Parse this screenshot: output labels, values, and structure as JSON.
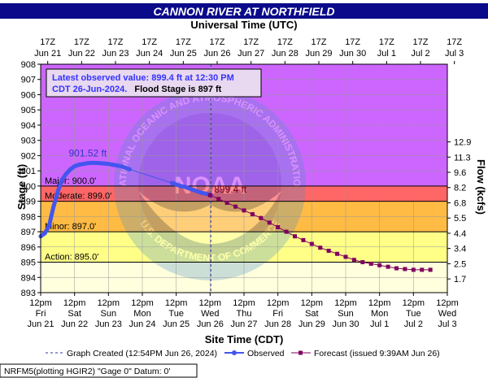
{
  "chart_data": {
    "type": "line",
    "title": "CANNON RIVER AT NORTHFIELD",
    "top_axis_label": "Universal Time (UTC)",
    "xlabel": "Site Time (CDT)",
    "ylabel": "Stage (ft)",
    "y2label": "Flow (kcfs)",
    "ylim": [
      893,
      908
    ],
    "xlim": [
      "2024-06-21T12:00",
      "2024-07-03T12:00"
    ],
    "grid": true,
    "y_ticks": [
      "893",
      "894",
      "895",
      "896",
      "897",
      "898",
      "899",
      "900",
      "901",
      "902",
      "903",
      "904",
      "905",
      "906",
      "907",
      "908"
    ],
    "y2_ticks": [
      {
        "stage": 893.9,
        "label": "1.7"
      },
      {
        "stage": 894.9,
        "label": "2.5"
      },
      {
        "stage": 895.9,
        "label": "3.4"
      },
      {
        "stage": 896.9,
        "label": "4.4"
      },
      {
        "stage": 897.9,
        "label": "5.5"
      },
      {
        "stage": 898.9,
        "label": "6.8"
      },
      {
        "stage": 899.9,
        "label": "8.2"
      },
      {
        "stage": 900.9,
        "label": "9.6"
      },
      {
        "stage": 901.9,
        "label": "11.3"
      },
      {
        "stage": 902.9,
        "label": "12.9"
      }
    ],
    "x_ticks_bottom": [
      {
        "time": "12pm",
        "day": "Fri",
        "date": "Jun 21"
      },
      {
        "time": "12pm",
        "day": "Sat",
        "date": "Jun 22"
      },
      {
        "time": "12pm",
        "day": "Sun",
        "date": "Jun 23"
      },
      {
        "time": "12pm",
        "day": "Mon",
        "date": "Jun 24"
      },
      {
        "time": "12pm",
        "day": "Tue",
        "date": "Jun 25"
      },
      {
        "time": "12pm",
        "day": "Wed",
        "date": "Jun 26"
      },
      {
        "time": "12pm",
        "day": "Thu",
        "date": "Jun 27"
      },
      {
        "time": "12pm",
        "day": "Fri",
        "date": "Jun 28"
      },
      {
        "time": "12pm",
        "day": "Sat",
        "date": "Jun 29"
      },
      {
        "time": "12pm",
        "day": "Sun",
        "date": "Jun 30"
      },
      {
        "time": "12pm",
        "day": "Mon",
        "date": "Jul 1"
      },
      {
        "time": "12pm",
        "day": "Tue",
        "date": "Jul 2"
      },
      {
        "time": "12pm",
        "day": "Wed",
        "date": "Jul 3"
      }
    ],
    "x_ticks_top": [
      {
        "time": "17Z",
        "date": "Jun 21"
      },
      {
        "time": "17Z",
        "date": "Jun 22"
      },
      {
        "time": "17Z",
        "date": "Jun 23"
      },
      {
        "time": "17Z",
        "date": "Jun 24"
      },
      {
        "time": "17Z",
        "date": "Jun 25"
      },
      {
        "time": "17Z",
        "date": "Jun 26"
      },
      {
        "time": "17Z",
        "date": "Jun 27"
      },
      {
        "time": "17Z",
        "date": "Jun 28"
      },
      {
        "time": "17Z",
        "date": "Jun 29"
      },
      {
        "time": "17Z",
        "date": "Jun 30"
      },
      {
        "time": "17Z",
        "date": "Jul 1"
      },
      {
        "time": "17Z",
        "date": "Jul 2"
      },
      {
        "time": "17Z",
        "date": "Jul 3"
      }
    ],
    "flood_categories": [
      {
        "name": "Major",
        "label": "Major: 900.0'",
        "stage": 900.0,
        "color": "#cc66ff"
      },
      {
        "name": "Moderate",
        "label": "Moderate: 899.0'",
        "stage": 899.0,
        "color": "#ff6666"
      },
      {
        "name": "Minor",
        "label": "Minor: 897.0'",
        "stage": 897.0,
        "color": "#ffbb44"
      },
      {
        "name": "Action",
        "label": "Action: 895.0'",
        "stage": 895.0,
        "color": "#ffff88"
      },
      {
        "name": "Below",
        "label": "",
        "stage": 893.0,
        "color": "#ffffdd"
      }
    ],
    "info_box": {
      "line1": "Latest observed value: 899.4 ft at 12:30 PM",
      "line2_date": "CDT 26-Jun-2024.",
      "line2_flood": "Flood Stage is 897 ft"
    },
    "crest_label": "901.52 ft",
    "latest_label": "899.4 ft",
    "series": [
      {
        "name": "Observed",
        "color": "#4455ee",
        "x": [
          "2024-06-21T12:00",
          "2024-06-21T15:00",
          "2024-06-21T18:00",
          "2024-06-21T21:00",
          "2024-06-22T00:00",
          "2024-06-22T03:00",
          "2024-06-22T06:00",
          "2024-06-22T09:00",
          "2024-06-22T12:00",
          "2024-06-22T15:00",
          "2024-06-22T18:00",
          "2024-06-22T21:00",
          "2024-06-23T00:00",
          "2024-06-23T03:00",
          "2024-06-23T06:00",
          "2024-06-23T09:00",
          "2024-06-23T12:00",
          "2024-06-23T15:00",
          "2024-06-23T18:00",
          "2024-06-23T21:00",
          "2024-06-24T00:00",
          "2024-06-24T03:00",
          "2024-06-25T09:00",
          "2024-06-25T12:00",
          "2024-06-25T15:00",
          "2024-06-25T18:00",
          "2024-06-25T21:00",
          "2024-06-26T00:00",
          "2024-06-26T03:00",
          "2024-06-26T06:00",
          "2024-06-26T09:00",
          "2024-06-26T12:30"
        ],
        "values": [
          896.7,
          896.9,
          897.4,
          898.6,
          899.6,
          900.4,
          900.8,
          901.1,
          901.3,
          901.4,
          901.45,
          901.5,
          901.52,
          901.52,
          901.5,
          901.48,
          901.45,
          901.4,
          901.35,
          901.3,
          901.2,
          901.1,
          900.2,
          900.1,
          900.0,
          899.95,
          899.85,
          899.75,
          899.65,
          899.55,
          899.5,
          899.4
        ]
      },
      {
        "name": "Forecast",
        "color": "#800060",
        "x": [
          "2024-06-26T12:00",
          "2024-06-26T18:00",
          "2024-06-27T00:00",
          "2024-06-27T06:00",
          "2024-06-27T12:00",
          "2024-06-27T18:00",
          "2024-06-28T00:00",
          "2024-06-28T06:00",
          "2024-06-28T12:00",
          "2024-06-28T18:00",
          "2024-06-29T00:00",
          "2024-06-29T06:00",
          "2024-06-29T12:00",
          "2024-06-29T18:00",
          "2024-06-30T00:00",
          "2024-06-30T06:00",
          "2024-06-30T12:00",
          "2024-06-30T18:00",
          "2024-07-01T00:00",
          "2024-07-01T06:00",
          "2024-07-01T12:00",
          "2024-07-01T18:00",
          "2024-07-02T00:00",
          "2024-07-02T06:00",
          "2024-07-02T12:00",
          "2024-07-02T18:00",
          "2024-07-03T00:00"
        ],
        "values": [
          899.4,
          899.15,
          898.9,
          898.65,
          898.4,
          898.15,
          897.9,
          897.6,
          897.3,
          897.0,
          896.7,
          896.45,
          896.2,
          895.95,
          895.75,
          895.55,
          895.35,
          895.15,
          895.0,
          894.9,
          894.8,
          894.7,
          894.6,
          894.55,
          894.5,
          894.5,
          894.5
        ]
      }
    ],
    "legend": {
      "graph_created": "Graph Created (12:54PM Jun 26, 2024)",
      "observed": "Observed",
      "forecast": "Forecast (issued 9:39AM Jun 26)"
    },
    "footer": "NRFM5(plotting HGIR2) \"Gage 0\" Datum: 0'",
    "watermark_top": "NATIONAL OCEANIC AND ATMOSPHERIC ADMINISTRATION",
    "watermark_bottom": "U.S. DEPARTMENT OF COMMERCE",
    "watermark_center": "NOAA"
  }
}
